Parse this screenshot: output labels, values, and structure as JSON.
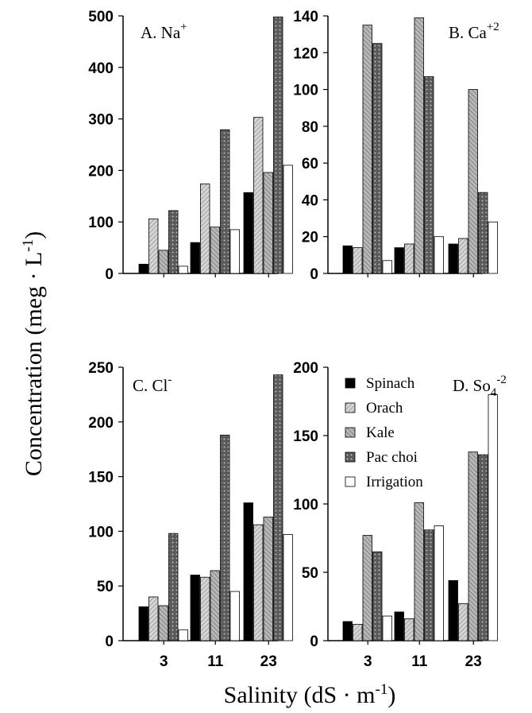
{
  "figure": {
    "ylabel": "Concentration (meg · L",
    "ylabel_sup": "-1",
    "ylabel_end": ")",
    "xlabel": "Salinity (dS · m",
    "xlabel_sup": "-1",
    "xlabel_end": ")"
  },
  "colors": {
    "Spinach": "#000000",
    "Orach": "#d6d6d6",
    "Kale": "#a8a8a8",
    "Pac choi": "#555555",
    "Irrigation": "#ffffff"
  },
  "legend": {
    "placement": "top-left of panel D",
    "entries": [
      "Spinach",
      "Orach",
      "Kale",
      "Pac choi",
      "Irrigation"
    ]
  },
  "chart_data": [
    {
      "type": "bar",
      "panel": "A",
      "label": "A.  Na",
      "label_sup": "+",
      "categories": [
        "3",
        "11",
        "23"
      ],
      "ylim": [
        0,
        500
      ],
      "yticks": [
        "0",
        "100",
        "200",
        "300",
        "400",
        "500"
      ],
      "series": [
        {
          "name": "Spinach",
          "values": [
            18,
            60,
            157
          ]
        },
        {
          "name": "Orach",
          "values": [
            106,
            174,
            303
          ]
        },
        {
          "name": "Kale",
          "values": [
            45,
            90,
            196
          ]
        },
        {
          "name": "Pac choi",
          "values": [
            122,
            279,
            498
          ]
        },
        {
          "name": "Irrigation",
          "values": [
            14,
            85,
            210
          ]
        }
      ]
    },
    {
      "type": "bar",
      "panel": "B",
      "label": "B.  Ca",
      "label_sup": "+2",
      "categories": [
        "3",
        "11",
        "23"
      ],
      "ylim": [
        0,
        140
      ],
      "yticks": [
        "0",
        "20",
        "40",
        "60",
        "80",
        "100",
        "120",
        "140"
      ],
      "series": [
        {
          "name": "Spinach",
          "values": [
            15,
            14,
            16
          ]
        },
        {
          "name": "Orach",
          "values": [
            14,
            16,
            19
          ]
        },
        {
          "name": "Kale",
          "values": [
            135,
            139,
            100
          ]
        },
        {
          "name": "Pac choi",
          "values": [
            125,
            107,
            44
          ]
        },
        {
          "name": "Irrigation",
          "values": [
            7,
            20,
            28
          ]
        }
      ]
    },
    {
      "type": "bar",
      "panel": "C",
      "label": "C.  Cl",
      "label_sup": "-",
      "categories": [
        "3",
        "11",
        "23"
      ],
      "ylim": [
        0,
        250
      ],
      "yticks": [
        "0",
        "50",
        "100",
        "150",
        "200",
        "250"
      ],
      "series": [
        {
          "name": "Spinach",
          "values": [
            31,
            60,
            126
          ]
        },
        {
          "name": "Orach",
          "values": [
            40,
            58,
            106
          ]
        },
        {
          "name": "Kale",
          "values": [
            32,
            64,
            113
          ]
        },
        {
          "name": "Pac choi",
          "values": [
            98,
            188,
            243
          ]
        },
        {
          "name": "Irrigation",
          "values": [
            10,
            45,
            97
          ]
        }
      ]
    },
    {
      "type": "bar",
      "panel": "D",
      "label": "D.  So",
      "label_sub": "4",
      "label_sup": "-2",
      "categories": [
        "3",
        "11",
        "23"
      ],
      "ylim": [
        0,
        200
      ],
      "yticks": [
        "0",
        "50",
        "100",
        "150",
        "200"
      ],
      "series": [
        {
          "name": "Spinach",
          "values": [
            14,
            21,
            44
          ]
        },
        {
          "name": "Orach",
          "values": [
            12,
            16,
            27
          ]
        },
        {
          "name": "Kale",
          "values": [
            77,
            101,
            138
          ]
        },
        {
          "name": "Pac choi",
          "values": [
            65,
            81,
            136
          ]
        },
        {
          "name": "Irrigation",
          "values": [
            18,
            84,
            180
          ]
        }
      ]
    }
  ]
}
